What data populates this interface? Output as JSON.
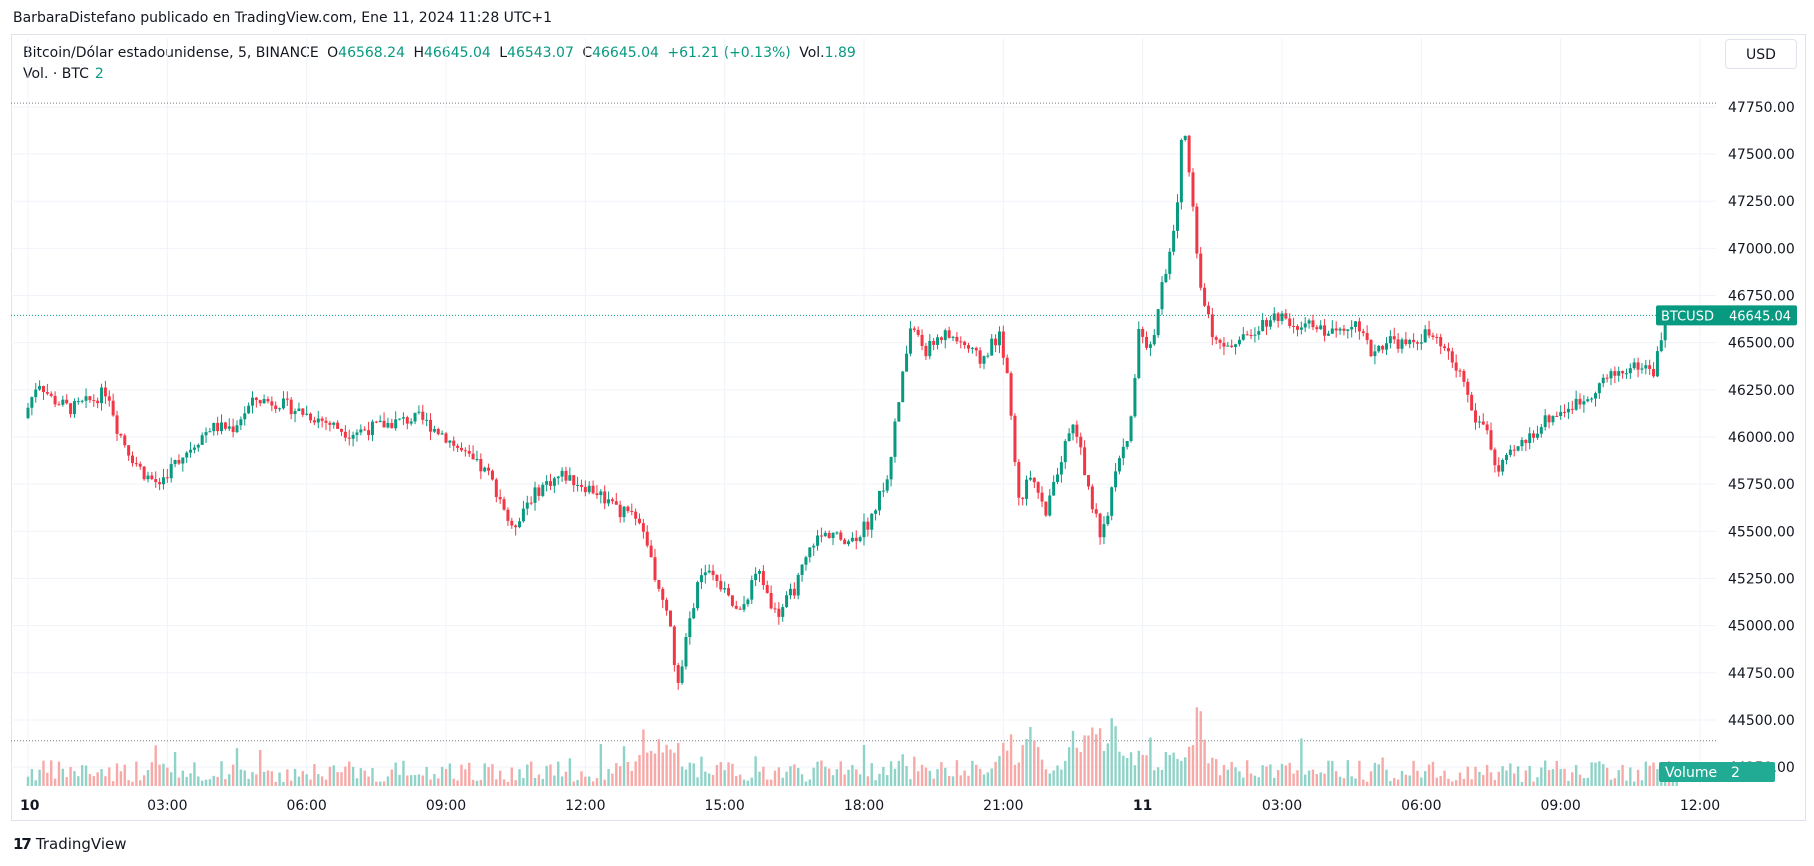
{
  "attribution": "BarbaraDistefano publicado en TradingView.com, Ene 11, 2024 11:28 UTC+1",
  "legend": {
    "symbol": "Bitcoin/Dólar estadounidense, 5, BINANCE",
    "open_label": "O",
    "open": "46568.24",
    "high_label": "H",
    "high": "46645.04",
    "low_label": "L",
    "low": "46543.07",
    "close_label": "C",
    "close": "46645.04",
    "change": "+61.21 (+0.13%)",
    "vol_label": "Vol.",
    "vol_value": "1.89"
  },
  "volume_legend": {
    "label": "Vol. · BTC",
    "value": "2"
  },
  "currency_button": "USD",
  "footer": {
    "logo_mark": "17",
    "logo_text": "TradingView"
  },
  "colors": {
    "up": "#089981",
    "down": "#f23645",
    "up_volume": "#8fd3c8",
    "down_volume": "#f7a9a7",
    "grid": "#f0f3fa",
    "price_line": "#089981"
  },
  "chart_data": {
    "type": "candlestick",
    "symbol_tag": "BTCUSD",
    "last_price": 46645.04,
    "last_price_label": "46645.04",
    "volume_tag": "Volume",
    "volume_tag_value": "2",
    "y_range": [
      44150,
      47850
    ],
    "y_ticks": [
      44250,
      44500,
      44750,
      45000,
      45250,
      45500,
      45750,
      46000,
      46250,
      46500,
      46750,
      47000,
      47250,
      47500,
      47750
    ],
    "y_tick_labels": [
      "44250.00",
      "44500.00",
      "44750.00",
      "45000.00",
      "45250.00",
      "45500.00",
      "45750.00",
      "46000.00",
      "46250.00",
      "46500.00",
      "46750.00",
      "47000.00",
      "47250.00",
      "47500.00",
      "47750.00"
    ],
    "high_marker": 47770,
    "low_marker": 44390,
    "x_range": [
      0,
      35.5
    ],
    "x_ticks": [
      0,
      3,
      6,
      9,
      12,
      15,
      18,
      21,
      24,
      27,
      30,
      33,
      36
    ],
    "x_tick_labels": [
      "10",
      "03:00",
      "06:00",
      "09:00",
      "12:00",
      "15:00",
      "18:00",
      "21:00",
      "11",
      "03:00",
      "06:00",
      "09:00",
      "12:00"
    ],
    "x_tick_bold": [
      true,
      false,
      false,
      false,
      false,
      false,
      false,
      false,
      true,
      false,
      false,
      false,
      false
    ],
    "x_unit": "hours since Jan 10 00:00",
    "price_path": [
      [
        0,
        46100
      ],
      [
        0.3,
        46300
      ],
      [
        0.6,
        46200
      ],
      [
        1.0,
        46150
      ],
      [
        1.5,
        46200
      ],
      [
        1.8,
        46250
      ],
      [
        2.0,
        46050
      ],
      [
        2.3,
        45900
      ],
      [
        2.6,
        45800
      ],
      [
        2.9,
        45750
      ],
      [
        3.2,
        45850
      ],
      [
        3.6,
        45950
      ],
      [
        4.0,
        46050
      ],
      [
        4.5,
        46050
      ],
      [
        4.8,
        46150
      ],
      [
        5.0,
        46200
      ],
      [
        5.5,
        46180
      ],
      [
        6.0,
        46130
      ],
      [
        6.5,
        46080
      ],
      [
        7.0,
        46020
      ],
      [
        7.5,
        46050
      ],
      [
        8.0,
        46080
      ],
      [
        8.5,
        46100
      ],
      [
        9.0,
        46020
      ],
      [
        9.5,
        45900
      ],
      [
        10.0,
        45800
      ],
      [
        10.3,
        45650
      ],
      [
        10.5,
        45500
      ],
      [
        10.8,
        45650
      ],
      [
        11.2,
        45750
      ],
      [
        11.6,
        45800
      ],
      [
        12.0,
        45750
      ],
      [
        12.4,
        45700
      ],
      [
        12.8,
        45600
      ],
      [
        13.0,
        45600
      ],
      [
        13.3,
        45500
      ],
      [
        13.6,
        45250
      ],
      [
        13.9,
        45000
      ],
      [
        14.1,
        44650
      ],
      [
        14.3,
        45000
      ],
      [
        14.6,
        45300
      ],
      [
        15.0,
        45200
      ],
      [
        15.4,
        45050
      ],
      [
        15.8,
        45300
      ],
      [
        16.2,
        45050
      ],
      [
        16.6,
        45200
      ],
      [
        17.0,
        45450
      ],
      [
        17.4,
        45500
      ],
      [
        17.8,
        45450
      ],
      [
        18.2,
        45550
      ],
      [
        18.6,
        45800
      ],
      [
        18.9,
        46300
      ],
      [
        19.1,
        46600
      ],
      [
        19.4,
        46450
      ],
      [
        19.8,
        46550
      ],
      [
        20.2,
        46500
      ],
      [
        20.6,
        46400
      ],
      [
        21.0,
        46550
      ],
      [
        21.2,
        46300
      ],
      [
        21.4,
        45650
      ],
      [
        21.7,
        45800
      ],
      [
        22.0,
        45600
      ],
      [
        22.3,
        45850
      ],
      [
        22.6,
        46100
      ],
      [
        22.9,
        45750
      ],
      [
        23.2,
        45450
      ],
      [
        23.5,
        45800
      ],
      [
        23.8,
        46050
      ],
      [
        24.0,
        46550
      ],
      [
        24.3,
        46450
      ],
      [
        24.5,
        46800
      ],
      [
        24.8,
        47150
      ],
      [
        24.95,
        47700
      ],
      [
        25.1,
        47400
      ],
      [
        25.3,
        46800
      ],
      [
        25.6,
        46550
      ],
      [
        25.9,
        46500
      ],
      [
        26.2,
        46500
      ],
      [
        26.6,
        46600
      ],
      [
        27.0,
        46650
      ],
      [
        27.4,
        46600
      ],
      [
        27.8,
        46580
      ],
      [
        28.2,
        46550
      ],
      [
        28.6,
        46620
      ],
      [
        29.0,
        46450
      ],
      [
        29.4,
        46520
      ],
      [
        29.8,
        46480
      ],
      [
        30.2,
        46550
      ],
      [
        30.6,
        46450
      ],
      [
        31.0,
        46300
      ],
      [
        31.2,
        46100
      ],
      [
        31.5,
        46050
      ],
      [
        31.7,
        45800
      ],
      [
        32.0,
        45900
      ],
      [
        32.4,
        46000
      ],
      [
        32.8,
        46100
      ],
      [
        33.2,
        46150
      ],
      [
        33.6,
        46200
      ],
      [
        34.0,
        46300
      ],
      [
        34.4,
        46350
      ],
      [
        34.8,
        46380
      ],
      [
        35.1,
        46350
      ],
      [
        35.3,
        46600
      ],
      [
        35.5,
        46645
      ]
    ],
    "volume_spikes": [
      [
        13.0,
        0.45
      ],
      [
        13.5,
        0.4
      ],
      [
        14.2,
        0.3
      ],
      [
        18.0,
        0.25
      ],
      [
        19.0,
        0.28
      ],
      [
        21.2,
        0.75
      ],
      [
        21.5,
        0.35
      ],
      [
        22.5,
        0.45
      ],
      [
        23.0,
        0.6
      ],
      [
        23.3,
        0.55
      ],
      [
        24.2,
        0.48
      ],
      [
        25.0,
        0.55
      ],
      [
        25.3,
        0.5
      ]
    ]
  }
}
